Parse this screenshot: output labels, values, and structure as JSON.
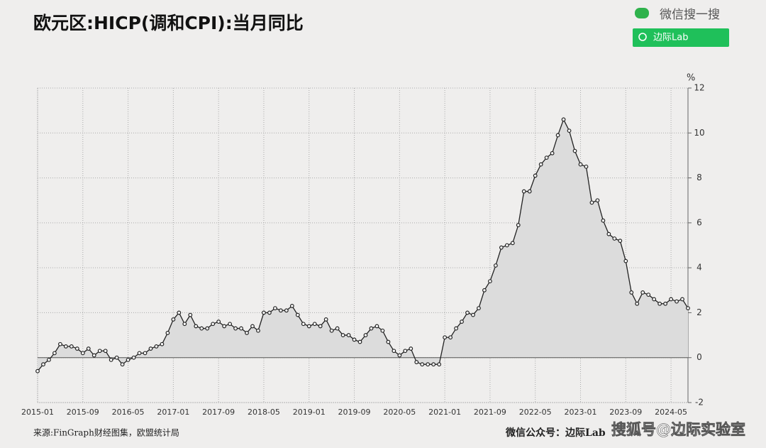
{
  "header": {
    "brand": "微信搜一搜",
    "search_button": "边际Lab"
  },
  "footer": {
    "source": "来源:FinGraph财经图集，欧盟统计局",
    "account": "微信公众号：边际Lab",
    "watermark": "搜狐号@边际实验室"
  },
  "chart_data": {
    "type": "line",
    "title": "欧元区:HICP(调和CPI):当月同比",
    "y_unit": "%",
    "x": [
      "2015-01",
      "2015-02",
      "2015-03",
      "2015-04",
      "2015-05",
      "2015-06",
      "2015-07",
      "2015-08",
      "2015-09",
      "2015-10",
      "2015-11",
      "2015-12",
      "2016-01",
      "2016-02",
      "2016-03",
      "2016-04",
      "2016-05",
      "2016-06",
      "2016-07",
      "2016-08",
      "2016-09",
      "2016-10",
      "2016-11",
      "2016-12",
      "2017-01",
      "2017-02",
      "2017-03",
      "2017-04",
      "2017-05",
      "2017-06",
      "2017-07",
      "2017-08",
      "2017-09",
      "2017-10",
      "2017-11",
      "2017-12",
      "2018-01",
      "2018-02",
      "2018-03",
      "2018-04",
      "2018-05",
      "2018-06",
      "2018-07",
      "2018-08",
      "2018-09",
      "2018-10",
      "2018-11",
      "2018-12",
      "2019-01",
      "2019-02",
      "2019-03",
      "2019-04",
      "2019-05",
      "2019-06",
      "2019-07",
      "2019-08",
      "2019-09",
      "2019-10",
      "2019-11",
      "2019-12",
      "2020-01",
      "2020-02",
      "2020-03",
      "2020-04",
      "2020-05",
      "2020-06",
      "2020-07",
      "2020-08",
      "2020-09",
      "2020-10",
      "2020-11",
      "2020-12",
      "2021-01",
      "2021-02",
      "2021-03",
      "2021-04",
      "2021-05",
      "2021-06",
      "2021-07",
      "2021-08",
      "2021-09",
      "2021-10",
      "2021-11",
      "2021-12",
      "2022-01",
      "2022-02",
      "2022-03",
      "2022-04",
      "2022-05",
      "2022-06",
      "2022-07",
      "2022-08",
      "2022-09",
      "2022-10",
      "2022-11",
      "2022-12",
      "2023-01",
      "2023-02",
      "2023-03",
      "2023-04",
      "2023-05",
      "2023-06",
      "2023-07",
      "2023-08",
      "2023-09",
      "2023-10",
      "2023-11",
      "2023-12",
      "2024-01",
      "2024-02",
      "2024-03",
      "2024-04",
      "2024-05",
      "2024-06",
      "2024-07",
      "2024-08"
    ],
    "series": [
      {
        "name": "HICP",
        "color": "#222222",
        "area_color": "#dcdcdc",
        "values": [
          -0.6,
          -0.3,
          -0.1,
          0.2,
          0.6,
          0.5,
          0.5,
          0.4,
          0.2,
          0.4,
          0.1,
          0.3,
          0.3,
          -0.1,
          0.0,
          -0.3,
          -0.1,
          0.0,
          0.2,
          0.2,
          0.4,
          0.5,
          0.6,
          1.1,
          1.7,
          2.0,
          1.5,
          1.9,
          1.4,
          1.3,
          1.3,
          1.5,
          1.6,
          1.4,
          1.5,
          1.3,
          1.3,
          1.1,
          1.4,
          1.2,
          2.0,
          2.0,
          2.2,
          2.1,
          2.1,
          2.3,
          1.9,
          1.5,
          1.4,
          1.5,
          1.4,
          1.7,
          1.2,
          1.3,
          1.0,
          1.0,
          0.8,
          0.7,
          1.0,
          1.3,
          1.4,
          1.2,
          0.7,
          0.3,
          0.1,
          0.3,
          0.4,
          -0.2,
          -0.3,
          -0.3,
          -0.3,
          -0.3,
          0.9,
          0.9,
          1.3,
          1.6,
          2.0,
          1.9,
          2.2,
          3.0,
          3.4,
          4.1,
          4.9,
          5.0,
          5.1,
          5.9,
          7.4,
          7.4,
          8.1,
          8.6,
          8.9,
          9.1,
          9.9,
          10.6,
          10.1,
          9.2,
          8.6,
          8.5,
          6.9,
          7.0,
          6.1,
          5.5,
          5.3,
          5.2,
          4.3,
          2.9,
          2.4,
          2.9,
          2.8,
          2.6,
          2.4,
          2.4,
          2.6,
          2.5,
          2.6,
          2.2
        ]
      }
    ],
    "xticks": [
      "2015-01",
      "2015-09",
      "2016-05",
      "2017-01",
      "2017-09",
      "2018-05",
      "2019-01",
      "2019-09",
      "2020-05",
      "2021-01",
      "2021-09",
      "2022-05",
      "2023-01",
      "2023-09",
      "2024-05"
    ],
    "ylim": [
      -2,
      12
    ],
    "yticks": [
      -2,
      0,
      2,
      4,
      6,
      8,
      10,
      12
    ],
    "grid": true
  }
}
